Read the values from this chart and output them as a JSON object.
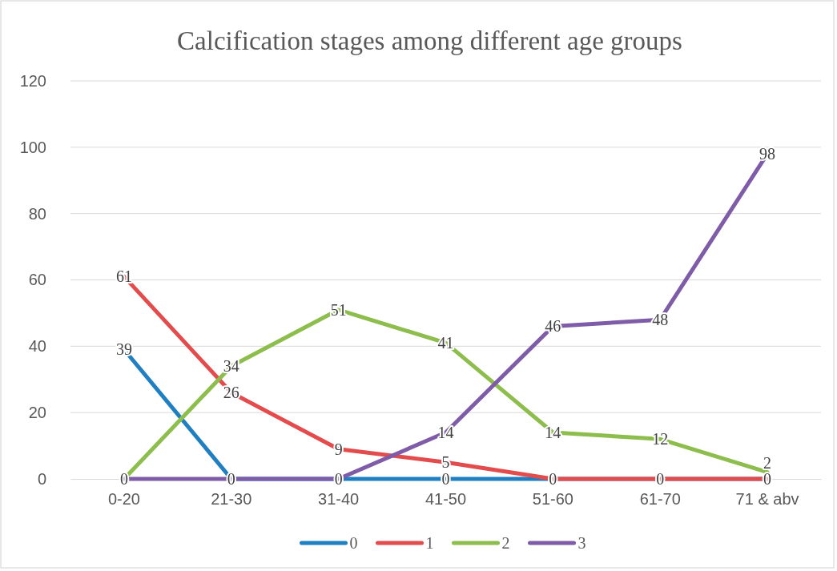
{
  "chart_data": {
    "type": "line",
    "title": "Calcification stages among different age groups",
    "categories": [
      "0-20",
      "21-30",
      "31-40",
      "41-50",
      "51-60",
      "61-70",
      "71 & abv"
    ],
    "series": [
      {
        "name": "0",
        "color": "#1f7fc1",
        "values": [
          39,
          0,
          0,
          0,
          0,
          0,
          0
        ],
        "value_labels": [
          "39",
          "0",
          "0",
          "0",
          "0",
          "0",
          null
        ]
      },
      {
        "name": "1",
        "color": "#e34c4c",
        "values": [
          61,
          26,
          9,
          5,
          0,
          0,
          0
        ],
        "value_labels": [
          "61",
          "26",
          "9",
          "5",
          null,
          null,
          "0"
        ]
      },
      {
        "name": "2",
        "color": "#8dbd4c",
        "values": [
          0,
          34,
          51,
          41,
          14,
          12,
          2
        ],
        "value_labels": [
          "0",
          "34",
          "51",
          "41",
          "14",
          "12",
          "2"
        ]
      },
      {
        "name": "3",
        "color": "#7f5ca8",
        "values": [
          0,
          0,
          0,
          14,
          46,
          48,
          98
        ],
        "value_labels": [
          null,
          null,
          null,
          "14",
          "46",
          "48",
          "98"
        ]
      }
    ],
    "ylim": [
      0,
      120
    ],
    "yticks": [
      0,
      20,
      40,
      60,
      80,
      100,
      120
    ],
    "grid": "y",
    "legend": "bottom",
    "marker": "none",
    "line_style": "solid"
  }
}
